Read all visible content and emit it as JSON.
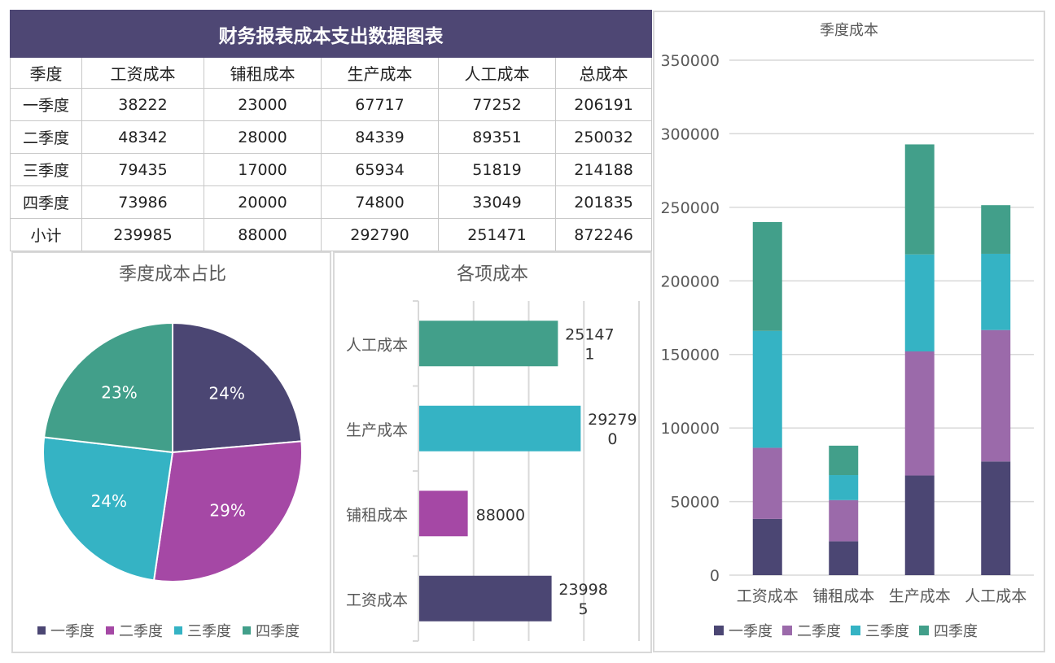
{
  "table": {
    "title": "财务报表成本支出数据图表",
    "headers": [
      "季度",
      "工资成本",
      "铺租成本",
      "生产成本",
      "人工成本",
      "总成本"
    ],
    "rows": [
      [
        "一季度",
        "38222",
        "23000",
        "67717",
        "77252",
        "206191"
      ],
      [
        "二季度",
        "48342",
        "28000",
        "84339",
        "89351",
        "250032"
      ],
      [
        "三季度",
        "79435",
        "17000",
        "65934",
        "51819",
        "214188"
      ],
      [
        "四季度",
        "73986",
        "20000",
        "74800",
        "33049",
        "201835"
      ],
      [
        "小计",
        "239985",
        "88000",
        "292790",
        "251471",
        "872246"
      ]
    ]
  },
  "chart_data": [
    {
      "type": "pie",
      "title": "季度成本占比",
      "categories": [
        "一季度",
        "二季度",
        "三季度",
        "四季度"
      ],
      "values": [
        206191,
        250032,
        214188,
        201835
      ],
      "labels": [
        "24%",
        "29%",
        "24%",
        "23%"
      ],
      "colors": [
        "#4b4673",
        "#a548a5",
        "#35b3c4",
        "#429f8a"
      ],
      "legend": "bottom"
    },
    {
      "type": "bar",
      "orientation": "horizontal",
      "title": "各项成本",
      "categories": [
        "工资成本",
        "铺租成本",
        "生产成本",
        "人工成本"
      ],
      "values": [
        239985,
        88000,
        292790,
        251471
      ],
      "value_labels": [
        [
          "23998",
          "5"
        ],
        [
          "88000"
        ],
        [
          "29279",
          "0"
        ],
        [
          "25147",
          "1"
        ]
      ],
      "colors": [
        "#4b4673",
        "#a548a5",
        "#35b3c4",
        "#429f8a"
      ],
      "xlim": [
        0,
        400000
      ],
      "grid": true
    },
    {
      "type": "bar",
      "stacked": true,
      "title": "季度成本",
      "categories": [
        "工资成本",
        "铺租成本",
        "生产成本",
        "人工成本"
      ],
      "series": [
        {
          "name": "一季度",
          "values": [
            38222,
            23000,
            67717,
            77252
          ],
          "color": "#4b4673"
        },
        {
          "name": "二季度",
          "values": [
            48342,
            28000,
            84339,
            89351
          ],
          "color": "#9b6aaa"
        },
        {
          "name": "三季度",
          "values": [
            79435,
            17000,
            65934,
            51819
          ],
          "color": "#35b3c4"
        },
        {
          "name": "四季度",
          "values": [
            73986,
            20000,
            74800,
            33049
          ],
          "color": "#429f8a"
        }
      ],
      "ylim": [
        0,
        350000
      ],
      "yticks": [
        "0",
        "50000",
        "100000",
        "150000",
        "200000",
        "250000",
        "300000",
        "350000"
      ],
      "grid": true,
      "legend": "bottom"
    }
  ]
}
